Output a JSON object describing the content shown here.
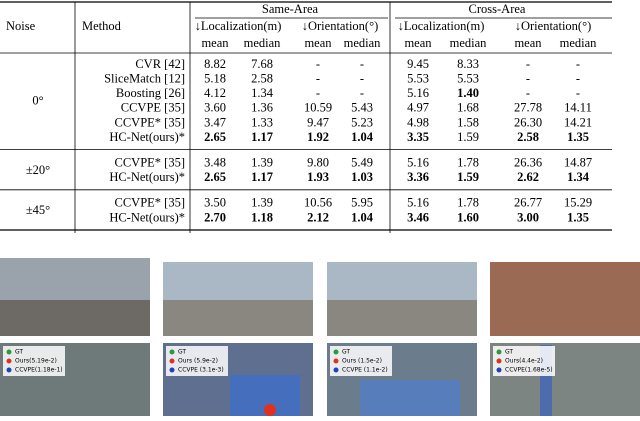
{
  "table": {
    "header": {
      "noise": "Noise",
      "method": "Method",
      "areas": [
        "Same-Area",
        "Cross-Area"
      ],
      "metrics": [
        "↓Localization(m)",
        "↓Orientation(°)"
      ],
      "stats": [
        "mean",
        "median"
      ]
    },
    "groups": [
      {
        "noise": "0°",
        "rows": [
          {
            "method": "CVR [42]",
            "values": [
              "8.82",
              "7.68",
              "-",
              "-",
              "9.45",
              "8.33",
              "-",
              "-"
            ],
            "bold": []
          },
          {
            "method": "SliceMatch [12]",
            "values": [
              "5.18",
              "2.58",
              "-",
              "-",
              "5.53",
              "5.53",
              "-",
              "-"
            ],
            "bold": []
          },
          {
            "method": "Boosting [26]",
            "values": [
              "4.12",
              "1.34",
              "-",
              "-",
              "5.16",
              "1.40",
              "-",
              "-"
            ],
            "bold": [
              5
            ]
          },
          {
            "method": "CCVPE [35]",
            "values": [
              "3.60",
              "1.36",
              "10.59",
              "5.43",
              "4.97",
              "1.68",
              "27.78",
              "14.11"
            ],
            "bold": []
          },
          {
            "method": "CCVPE* [35]",
            "values": [
              "3.47",
              "1.33",
              "9.47",
              "5.23",
              "4.98",
              "1.58",
              "26.30",
              "14.21"
            ],
            "bold": []
          },
          {
            "method": "HC-Net(ours)*",
            "values": [
              "2.65",
              "1.17",
              "1.92",
              "1.04",
              "3.35",
              "1.59",
              "2.58",
              "1.35"
            ],
            "bold": [
              0,
              1,
              2,
              3,
              4,
              6,
              7
            ]
          }
        ]
      },
      {
        "noise": "±20°",
        "rows": [
          {
            "method": "CCVPE* [35]",
            "values": [
              "3.48",
              "1.39",
              "9.80",
              "5.49",
              "5.16",
              "1.78",
              "26.36",
              "14.87"
            ],
            "bold": []
          },
          {
            "method": "HC-Net(ours)*",
            "values": [
              "2.65",
              "1.17",
              "1.93",
              "1.03",
              "3.36",
              "1.59",
              "2.62",
              "1.34"
            ],
            "bold": [
              0,
              1,
              2,
              3,
              4,
              5,
              6,
              7
            ]
          }
        ]
      },
      {
        "noise": "±45°",
        "rows": [
          {
            "method": "CCVPE* [35]",
            "values": [
              "3.50",
              "1.39",
              "10.56",
              "5.95",
              "5.16",
              "1.78",
              "26.77",
              "15.29"
            ],
            "bold": []
          },
          {
            "method": "HC-Net(ours)*",
            "values": [
              "2.70",
              "1.18",
              "2.12",
              "1.04",
              "3.46",
              "1.60",
              "3.00",
              "1.35"
            ],
            "bold": [
              0,
              1,
              2,
              3,
              4,
              5,
              6,
              7
            ]
          }
        ]
      }
    ]
  },
  "panels": [
    {
      "legend": [
        "GT",
        "Ours(5.19e-2)",
        "CCVPE(1.18e-1)"
      ]
    },
    {
      "legend": [
        "GT",
        "Ours (5.9e-2)",
        "CCVPE (3.1e-3)"
      ]
    },
    {
      "legend": [
        "GT",
        "Ours (1.5e-2)",
        "CCVPE (1.1e-2)"
      ]
    },
    {
      "legend": [
        "GT",
        "Ours(4.4e-2)",
        "CCVPE(1.68e-5)"
      ]
    }
  ]
}
